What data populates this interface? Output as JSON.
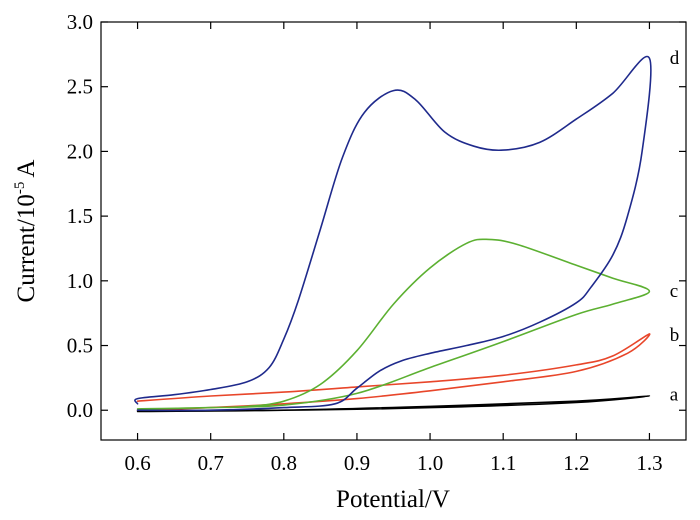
{
  "chart_data": {
    "type": "line",
    "title": "",
    "xlabel": "Potential/V",
    "ylabel": {
      "prefix": "Current/10",
      "exponent": "-5",
      "unit": "A"
    },
    "xlim": [
      0.55,
      1.35
    ],
    "ylim": [
      -0.23,
      3.0
    ],
    "x_ticks": [
      0.6,
      0.7,
      0.8,
      0.9,
      1.0,
      1.1,
      1.2,
      1.3
    ],
    "x_tick_labels": [
      "0.6",
      "0.7",
      "0.8",
      "0.9",
      "1.0",
      "1.1",
      "1.2",
      "1.3"
    ],
    "y_ticks": [
      0.0,
      0.5,
      1.0,
      1.5,
      2.0,
      2.5,
      3.0
    ],
    "y_tick_labels": [
      "0.0",
      "0.5",
      "1.0",
      "1.5",
      "2.0",
      "2.5",
      "3.0"
    ],
    "grid": false,
    "series": [
      {
        "name": "a",
        "color": "#000000",
        "points": [
          [
            0.6,
            -0.01
          ],
          [
            0.8,
            0.0
          ],
          [
            1.0,
            0.03
          ],
          [
            1.2,
            0.07
          ],
          [
            1.3,
            0.11
          ],
          [
            1.2,
            0.06
          ],
          [
            1.0,
            0.02
          ],
          [
            0.8,
            0.0
          ],
          [
            0.6,
            0.0
          ]
        ]
      },
      {
        "name": "b",
        "color": "#e8462a",
        "points": [
          [
            0.6,
            0.07
          ],
          [
            0.7,
            0.11
          ],
          [
            0.8,
            0.14
          ],
          [
            0.9,
            0.18
          ],
          [
            1.0,
            0.22
          ],
          [
            1.1,
            0.27
          ],
          [
            1.2,
            0.35
          ],
          [
            1.25,
            0.42
          ],
          [
            1.3,
            0.59
          ],
          [
            1.27,
            0.44
          ],
          [
            1.2,
            0.3
          ],
          [
            1.1,
            0.22
          ],
          [
            1.0,
            0.15
          ],
          [
            0.9,
            0.09
          ],
          [
            0.8,
            0.05
          ],
          [
            0.7,
            0.02
          ],
          [
            0.6,
            0.0
          ]
        ]
      },
      {
        "name": "c",
        "color": "#5cb031",
        "points": [
          [
            0.6,
            0.01
          ],
          [
            0.7,
            0.02
          ],
          [
            0.75,
            0.03
          ],
          [
            0.8,
            0.07
          ],
          [
            0.85,
            0.2
          ],
          [
            0.9,
            0.46
          ],
          [
            0.95,
            0.82
          ],
          [
            1.0,
            1.1
          ],
          [
            1.05,
            1.29
          ],
          [
            1.08,
            1.32
          ],
          [
            1.12,
            1.28
          ],
          [
            1.2,
            1.12
          ],
          [
            1.25,
            1.02
          ],
          [
            1.3,
            0.92
          ],
          [
            1.25,
            0.82
          ],
          [
            1.2,
            0.74
          ],
          [
            1.1,
            0.53
          ],
          [
            1.0,
            0.33
          ],
          [
            0.9,
            0.13
          ],
          [
            0.8,
            0.04
          ],
          [
            0.7,
            0.02
          ],
          [
            0.6,
            0.01
          ]
        ]
      },
      {
        "name": "d",
        "color": "#1f2a8c",
        "points": [
          [
            0.6,
            0.05
          ],
          [
            0.6,
            0.09
          ],
          [
            0.65,
            0.12
          ],
          [
            0.7,
            0.16
          ],
          [
            0.75,
            0.22
          ],
          [
            0.78,
            0.33
          ],
          [
            0.8,
            0.55
          ],
          [
            0.82,
            0.85
          ],
          [
            0.85,
            1.4
          ],
          [
            0.88,
            1.95
          ],
          [
            0.91,
            2.3
          ],
          [
            0.95,
            2.47
          ],
          [
            0.98,
            2.4
          ],
          [
            1.02,
            2.15
          ],
          [
            1.06,
            2.04
          ],
          [
            1.1,
            2.01
          ],
          [
            1.15,
            2.07
          ],
          [
            1.2,
            2.25
          ],
          [
            1.25,
            2.45
          ],
          [
            1.3,
            2.72
          ],
          [
            1.29,
            2.0
          ],
          [
            1.27,
            1.5
          ],
          [
            1.25,
            1.2
          ],
          [
            1.22,
            0.95
          ],
          [
            1.2,
            0.83
          ],
          [
            1.15,
            0.68
          ],
          [
            1.1,
            0.57
          ],
          [
            1.05,
            0.5
          ],
          [
            1.0,
            0.44
          ],
          [
            0.96,
            0.38
          ],
          [
            0.93,
            0.3
          ],
          [
            0.9,
            0.17
          ],
          [
            0.87,
            0.05
          ],
          [
            0.8,
            0.02
          ],
          [
            0.7,
            0.0
          ],
          [
            0.6,
            0.0
          ]
        ]
      }
    ],
    "annotations": [
      {
        "text": "a",
        "series": "a",
        "x": 1.325,
        "y": 0.12
      },
      {
        "text": "b",
        "series": "b",
        "x": 1.325,
        "y": 0.58
      },
      {
        "text": "c",
        "series": "c",
        "x": 1.325,
        "y": 0.92
      },
      {
        "text": "d",
        "series": "d",
        "x": 1.325,
        "y": 2.72
      }
    ]
  }
}
